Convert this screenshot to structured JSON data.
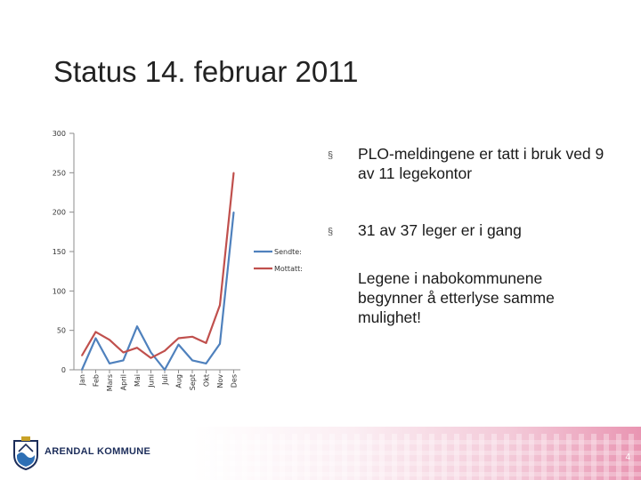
{
  "slide": {
    "title": "Status 14. februar 2011",
    "page_number": "4"
  },
  "bullets": [
    {
      "marker": "§",
      "text": "PLO-meldingene er tatt i bruk ved 9 av 11 legekontor"
    },
    {
      "marker": "§",
      "text": "31 av 37 leger er i gang"
    },
    {
      "marker": "",
      "text": "Legene i nabokommunene begynner å etterlyse samme mulighet!"
    }
  ],
  "footer": {
    "organization": "ARENDAL KOMMUNE"
  },
  "colors": {
    "sendte": "#4f81bd",
    "mottatt": "#c0504d",
    "axis": "#8c8c8c"
  },
  "chart_data": {
    "type": "line",
    "categories": [
      "Jan",
      "Feb",
      "Mars",
      "April",
      "Mai",
      "Juni",
      "Juli",
      "Aug",
      "Sept",
      "Okt",
      "Nov",
      "Des"
    ],
    "yticks": [
      "0",
      "50",
      "100",
      "150",
      "200",
      "250",
      "300"
    ],
    "ylim": [
      0,
      300
    ],
    "series": [
      {
        "name": "Sendte:",
        "color": "#4f81bd",
        "values": [
          0,
          40,
          8,
          12,
          55,
          22,
          0,
          32,
          12,
          8,
          33,
          200
        ]
      },
      {
        "name": "Mottatt:",
        "color": "#c0504d",
        "values": [
          18,
          48,
          38,
          22,
          28,
          15,
          24,
          40,
          42,
          34,
          82,
          250
        ]
      }
    ],
    "legend_position": "right",
    "grid": false
  }
}
